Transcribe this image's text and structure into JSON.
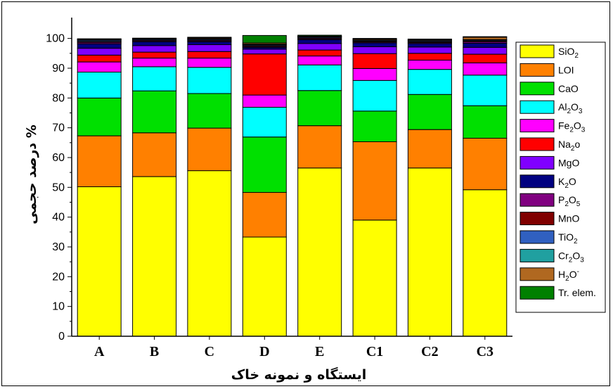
{
  "chart_data": {
    "type": "bar",
    "stacked": true,
    "xlabel": "ایستگاه و نمونه خاک",
    "ylabel": "درصد حجمی %",
    "ylim": [
      0,
      100
    ],
    "yticks": [
      0,
      10,
      20,
      30,
      40,
      50,
      60,
      70,
      80,
      90,
      100
    ],
    "legend_position": "right",
    "grid": false,
    "categories": [
      "A",
      "B",
      "C",
      "D",
      "E",
      "C1",
      "C2",
      "C3"
    ],
    "series": [
      {
        "key": "sio2",
        "main": "SiO",
        "sub": "2",
        "sup": "",
        "color": "#ffff00",
        "values": [
          50.2,
          53.6,
          55.6,
          33.3,
          56.5,
          39.0,
          56.5,
          49.2
        ]
      },
      {
        "key": "loi",
        "main": "LOI",
        "sub": "",
        "sup": "",
        "color": "#ff8000",
        "values": [
          17.1,
          14.7,
          14.3,
          15.0,
          14.2,
          26.3,
          12.9,
          17.3
        ]
      },
      {
        "key": "cao",
        "main": "CaO",
        "sub": "",
        "sup": "",
        "color": "#00e000",
        "values": [
          12.7,
          14.1,
          11.6,
          18.6,
          11.8,
          10.3,
          11.8,
          10.9
        ]
      },
      {
        "key": "al2o3",
        "main": "Al",
        "sub": "2",
        "mid": "O",
        "sub2": "3",
        "sup": "",
        "color": "#00ffff",
        "values": [
          8.7,
          8.1,
          8.8,
          10.0,
          8.6,
          10.3,
          8.4,
          10.3
        ]
      },
      {
        "key": "fe2o3",
        "main": "Fe",
        "sub": "2",
        "mid": "O",
        "sub2": "3",
        "sup": "",
        "color": "#ff00ff",
        "values": [
          3.4,
          2.9,
          3.1,
          4.1,
          3.0,
          4.0,
          3.1,
          4.1
        ]
      },
      {
        "key": "na2o",
        "main": "Na",
        "sub": "2",
        "mid": "o",
        "sub2": "",
        "sup": "",
        "color": "#ff0000",
        "values": [
          2.3,
          2.0,
          2.2,
          13.8,
          2.0,
          5.0,
          2.3,
          2.9
        ]
      },
      {
        "key": "mgo",
        "main": "MgO",
        "sub": "",
        "sup": "",
        "color": "#8000ff",
        "values": [
          2.3,
          2.2,
          2.3,
          1.6,
          2.2,
          2.3,
          2.1,
          2.3
        ]
      },
      {
        "key": "k2o",
        "main": "K",
        "sub": "2",
        "mid": "O",
        "sub2": "",
        "sup": "",
        "color": "#000080",
        "values": [
          1.5,
          1.3,
          1.0,
          0.6,
          1.3,
          1.3,
          1.2,
          1.4
        ]
      },
      {
        "key": "p2o5",
        "main": "P",
        "sub": "2",
        "mid": "O",
        "sub2": "5",
        "sup": "",
        "color": "#800080",
        "values": [
          0.5,
          0.3,
          0.3,
          0.3,
          0.3,
          0.3,
          0.3,
          0.5
        ]
      },
      {
        "key": "mno",
        "main": "MnO",
        "sub": "",
        "sup": "",
        "color": "#800000",
        "values": [
          0.3,
          0.3,
          0.3,
          0.3,
          0.3,
          0.3,
          0.3,
          0.3
        ]
      },
      {
        "key": "tio2",
        "main": "TiO",
        "sub": "2",
        "sup": "",
        "color": "#3060c0",
        "values": [
          0.4,
          0.3,
          0.3,
          0.3,
          0.3,
          0.3,
          0.3,
          0.3
        ]
      },
      {
        "key": "cr2o3",
        "main": "Cr",
        "sub": "2",
        "mid": "O",
        "sub2": "3",
        "sup": "",
        "color": "#20a0a0",
        "values": [
          0.2,
          0.1,
          0.1,
          0.2,
          0.1,
          0.1,
          0.1,
          0.1
        ]
      },
      {
        "key": "h2o",
        "main": "H",
        "sub": "2",
        "mid": "O",
        "sub2": "",
        "sup": "-",
        "color": "#b06820",
        "values": [
          0.2,
          0.1,
          0.3,
          0.4,
          0.2,
          0.3,
          0.3,
          0.8
        ]
      },
      {
        "key": "tr",
        "main": "Tr. elem.",
        "sub": "",
        "sup": "",
        "color": "#008000",
        "values": [
          0.1,
          0.1,
          0.2,
          2.5,
          0.3,
          0.2,
          0.2,
          0.2
        ]
      }
    ]
  }
}
